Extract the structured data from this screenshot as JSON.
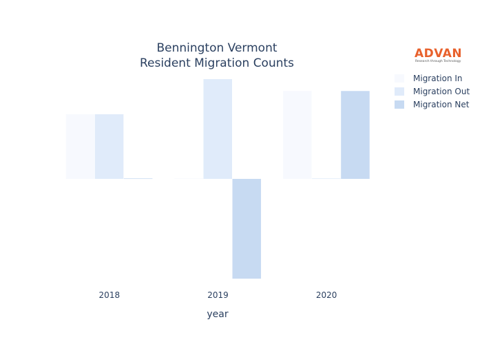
{
  "chart_data": {
    "type": "bar",
    "title_lines": [
      "Bennington Vermont",
      "Resident Migration Counts"
    ],
    "xlabel": "year",
    "ylabel": "",
    "categories": [
      "2018",
      "2019",
      "2020"
    ],
    "series": [
      {
        "name": "Migration In",
        "values": [
          125,
          1,
          170
        ],
        "color": "#f7f9fe"
      },
      {
        "name": "Migration Out",
        "values": [
          125,
          193,
          1
        ],
        "color": "#e0ebfa"
      },
      {
        "name": "Migration Net",
        "values": [
          1,
          -193,
          170
        ],
        "color": "#c7daf2"
      }
    ],
    "ylim": [
      -200,
      200
    ],
    "grid": false,
    "legend_position": "top-right"
  },
  "logo": {
    "name": "ADVAN",
    "tagline": "Research through Technology"
  }
}
